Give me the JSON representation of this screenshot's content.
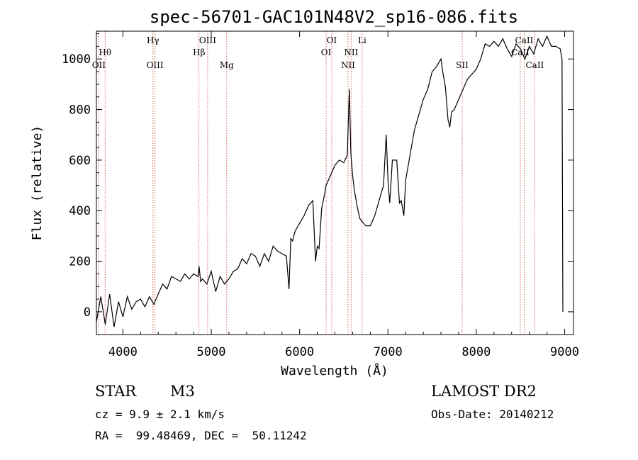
{
  "chart_data": {
    "type": "line",
    "title": "spec-56701-GAC101N48V2_sp16-086.fits",
    "xlabel": "Wavelength (Å)",
    "ylabel": "Flux (relative)",
    "xlim": [
      3700,
      9100
    ],
    "ylim": [
      -90,
      1110
    ],
    "xticks": [
      4000,
      5000,
      6000,
      7000,
      8000,
      9000
    ],
    "yticks": [
      0,
      200,
      400,
      600,
      800,
      1000
    ],
    "grid": false,
    "series": [
      {
        "color": "#000000",
        "x": [
          3700,
          3750,
          3800,
          3850,
          3900,
          3950,
          4000,
          4050,
          4100,
          4150,
          4200,
          4250,
          4300,
          4350,
          4400,
          4450,
          4500,
          4550,
          4600,
          4650,
          4700,
          4750,
          4800,
          4850,
          4862,
          4880,
          4900,
          4950,
          5000,
          5050,
          5100,
          5150,
          5200,
          5250,
          5300,
          5350,
          5400,
          5450,
          5500,
          5550,
          5600,
          5650,
          5700,
          5750,
          5800,
          5850,
          5880,
          5900,
          5920,
          5950,
          6000,
          6050,
          6100,
          6150,
          6180,
          6200,
          6220,
          6250,
          6280,
          6300,
          6350,
          6400,
          6450,
          6500,
          6540,
          6563,
          6580,
          6600,
          6620,
          6650,
          6680,
          6700,
          6750,
          6800,
          6850,
          6900,
          6950,
          6980,
          7000,
          7020,
          7050,
          7100,
          7130,
          7150,
          7180,
          7200,
          7250,
          7300,
          7350,
          7400,
          7450,
          7500,
          7550,
          7600,
          7620,
          7650,
          7680,
          7700,
          7720,
          7750,
          7800,
          7850,
          7900,
          7950,
          8000,
          8050,
          8100,
          8150,
          8200,
          8250,
          8300,
          8350,
          8400,
          8450,
          8500,
          8550,
          8600,
          8650,
          8700,
          8750,
          8800,
          8850,
          8900,
          8950,
          8970,
          8980
        ],
        "y": [
          -40,
          60,
          -50,
          70,
          -60,
          40,
          -20,
          60,
          10,
          40,
          50,
          20,
          60,
          30,
          70,
          110,
          90,
          140,
          130,
          120,
          150,
          130,
          150,
          140,
          180,
          120,
          130,
          110,
          160,
          80,
          140,
          110,
          130,
          160,
          170,
          210,
          190,
          230,
          220,
          180,
          230,
          200,
          260,
          240,
          230,
          220,
          90,
          290,
          280,
          320,
          350,
          380,
          420,
          440,
          200,
          260,
          250,
          410,
          460,
          500,
          540,
          580,
          600,
          590,
          620,
          880,
          630,
          540,
          480,
          420,
          370,
          360,
          340,
          340,
          380,
          440,
          500,
          700,
          520,
          430,
          600,
          600,
          430,
          440,
          380,
          520,
          620,
          720,
          780,
          840,
          880,
          950,
          970,
          1000,
          950,
          890,
          760,
          730,
          790,
          800,
          840,
          880,
          920,
          940,
          960,
          1000,
          1060,
          1050,
          1070,
          1050,
          1080,
          1040,
          1010,
          1060,
          1040,
          1000,
          1050,
          1020,
          1080,
          1050,
          1090,
          1050,
          1050,
          1040,
          1000,
          0
        ]
      }
    ],
    "spectral_lines": [
      {
        "name": "Hθ",
        "x": 3798,
        "tier": "upper"
      },
      {
        "name": "OII",
        "x": 3727,
        "tier": "lower"
      },
      {
        "name": "Hγ",
        "x": 4340,
        "tier": "top"
      },
      {
        "name": "OIII",
        "x": 4363,
        "tier": "lower"
      },
      {
        "name": "Hβ",
        "x": 4861,
        "tier": "upper"
      },
      {
        "name": "OIII",
        "x": 4959,
        "tier": "top"
      },
      {
        "name": "Mg",
        "x": 5175,
        "tier": "lower"
      },
      {
        "name": "OI",
        "x": 6364,
        "tier": "top"
      },
      {
        "name": "OI",
        "x": 6300,
        "tier": "upper"
      },
      {
        "name": "NII",
        "x": 6583,
        "tier": "upper"
      },
      {
        "name": "NII",
        "x": 6548,
        "tier": "lower"
      },
      {
        "name": "Li",
        "x": 6708,
        "tier": "top"
      },
      {
        "name": "SII",
        "x": 7840,
        "tier": "lower"
      },
      {
        "name": "CaII",
        "x": 8542,
        "tier": "top"
      },
      {
        "name": "CaII",
        "x": 8498,
        "tier": "upper"
      },
      {
        "name": "CaII",
        "x": 8662,
        "tier": "lower"
      }
    ]
  },
  "info": {
    "object_type": "STAR",
    "subclass": "M3",
    "survey": "LAMOST DR2",
    "redshift": "cz = 9.9 ± 2.1 km/s",
    "obs_date": "Obs-Date: 20140212",
    "coords": "RA =  99.48469, DEC =  50.11242"
  }
}
